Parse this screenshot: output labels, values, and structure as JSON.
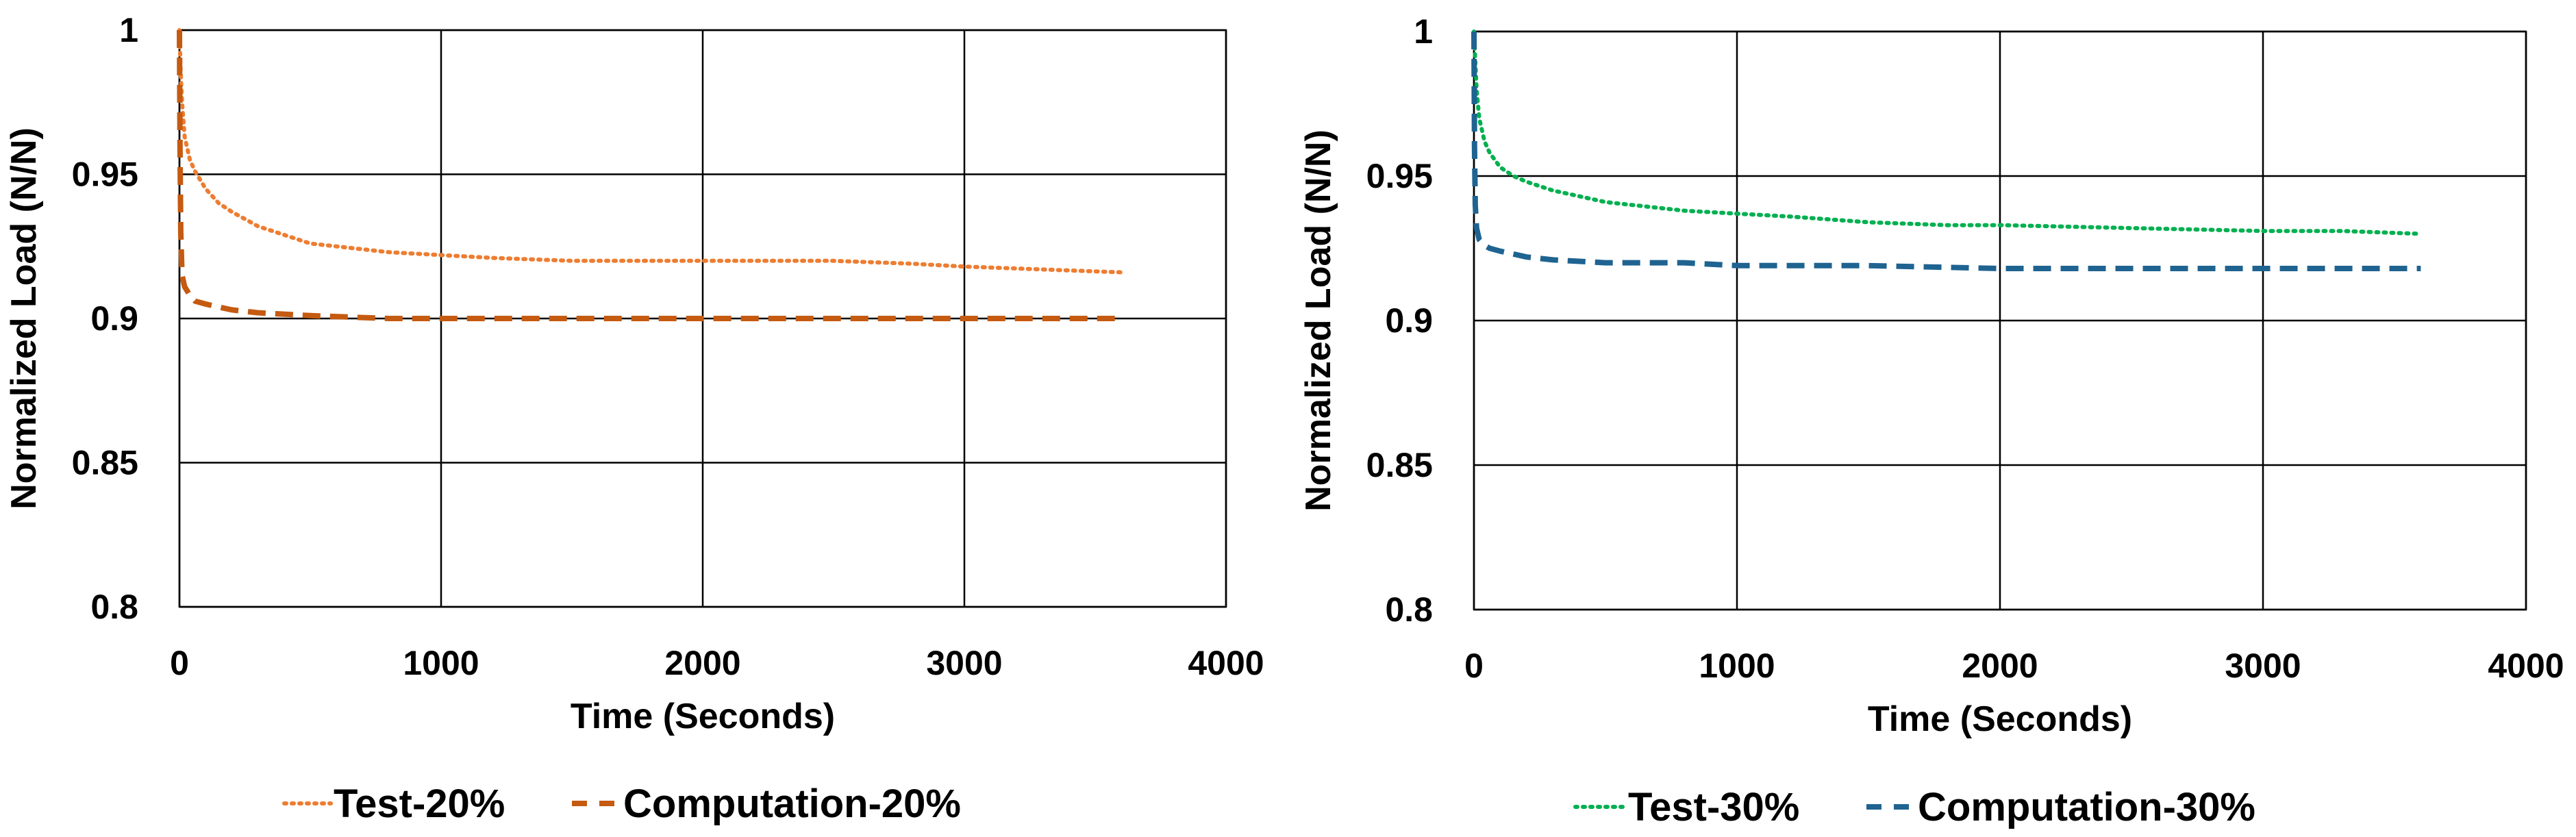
{
  "chart_data": [
    {
      "type": "line",
      "title": "",
      "xlabel": "Time (Seconds)",
      "ylabel": "Normalized Load (N/N)",
      "xlim": [
        0,
        4000
      ],
      "ylim": [
        0.8,
        1
      ],
      "xticks": [
        0,
        1000,
        2000,
        3000,
        4000
      ],
      "xtick_labels": [
        "0",
        "1000",
        "2000",
        "3000",
        "4000"
      ],
      "yticks": [
        0.8,
        0.85,
        0.9,
        0.95,
        1
      ],
      "ytick_labels": [
        "0.8",
        "0.85",
        "0.9",
        "0.95",
        "1"
      ],
      "grid": true,
      "legend_position": "bottom",
      "series": [
        {
          "name": "Test-20%",
          "color": "#ED7D31",
          "style": "dotted",
          "x": [
            0,
            5,
            10,
            20,
            40,
            60,
            100,
            150,
            200,
            300,
            400,
            500,
            600,
            800,
            1000,
            1200,
            1500,
            1800,
            2000,
            2200,
            2500,
            2800,
            3000,
            3300,
            3600
          ],
          "y": [
            1.0,
            0.985,
            0.975,
            0.963,
            0.955,
            0.951,
            0.945,
            0.94,
            0.937,
            0.932,
            0.929,
            0.926,
            0.925,
            0.923,
            0.922,
            0.921,
            0.92,
            0.92,
            0.92,
            0.92,
            0.92,
            0.919,
            0.918,
            0.917,
            0.916
          ]
        },
        {
          "name": "Computation-20%",
          "color": "#C55A11",
          "style": "dashed",
          "x": [
            0,
            2,
            5,
            10,
            20,
            40,
            60,
            100,
            150,
            200,
            300,
            500,
            800,
            1000,
            1500,
            2000,
            2500,
            3000,
            3600
          ],
          "y": [
            1.0,
            0.96,
            0.93,
            0.915,
            0.911,
            0.908,
            0.906,
            0.905,
            0.904,
            0.903,
            0.902,
            0.901,
            0.9,
            0.9,
            0.9,
            0.9,
            0.9,
            0.9,
            0.9
          ]
        }
      ]
    },
    {
      "type": "line",
      "title": "",
      "xlabel": "Time (Seconds)",
      "ylabel": "Normalized Load (N/N)",
      "xlim": [
        0,
        4000
      ],
      "ylim": [
        0.8,
        1
      ],
      "xticks": [
        0,
        1000,
        2000,
        3000,
        4000
      ],
      "xtick_labels": [
        "0",
        "1000",
        "2000",
        "3000",
        "4000"
      ],
      "yticks": [
        0.8,
        0.85,
        0.9,
        0.95,
        1
      ],
      "ytick_labels": [
        "0.8",
        "0.85",
        "0.9",
        "0.95",
        "1"
      ],
      "grid": true,
      "legend_position": "bottom",
      "series": [
        {
          "name": "Test-30%",
          "color": "#00B050",
          "style": "dotted",
          "x": [
            0,
            5,
            10,
            20,
            40,
            60,
            100,
            150,
            200,
            300,
            400,
            500,
            600,
            800,
            1000,
            1200,
            1500,
            1800,
            2000,
            2500,
            3000,
            3300,
            3600
          ],
          "y": [
            1.0,
            0.99,
            0.98,
            0.97,
            0.962,
            0.958,
            0.953,
            0.95,
            0.948,
            0.945,
            0.943,
            0.941,
            0.94,
            0.938,
            0.937,
            0.936,
            0.934,
            0.933,
            0.933,
            0.932,
            0.931,
            0.931,
            0.93
          ]
        },
        {
          "name": "Computation-30%",
          "color": "#1F6391",
          "style": "dashed",
          "x": [
            0,
            2,
            5,
            10,
            20,
            40,
            60,
            100,
            150,
            200,
            300,
            500,
            800,
            1000,
            1500,
            2000,
            2500,
            3000,
            3600
          ],
          "y": [
            1.0,
            0.96,
            0.94,
            0.932,
            0.928,
            0.926,
            0.925,
            0.924,
            0.923,
            0.922,
            0.921,
            0.92,
            0.92,
            0.919,
            0.919,
            0.918,
            0.918,
            0.918,
            0.918
          ]
        }
      ]
    }
  ]
}
